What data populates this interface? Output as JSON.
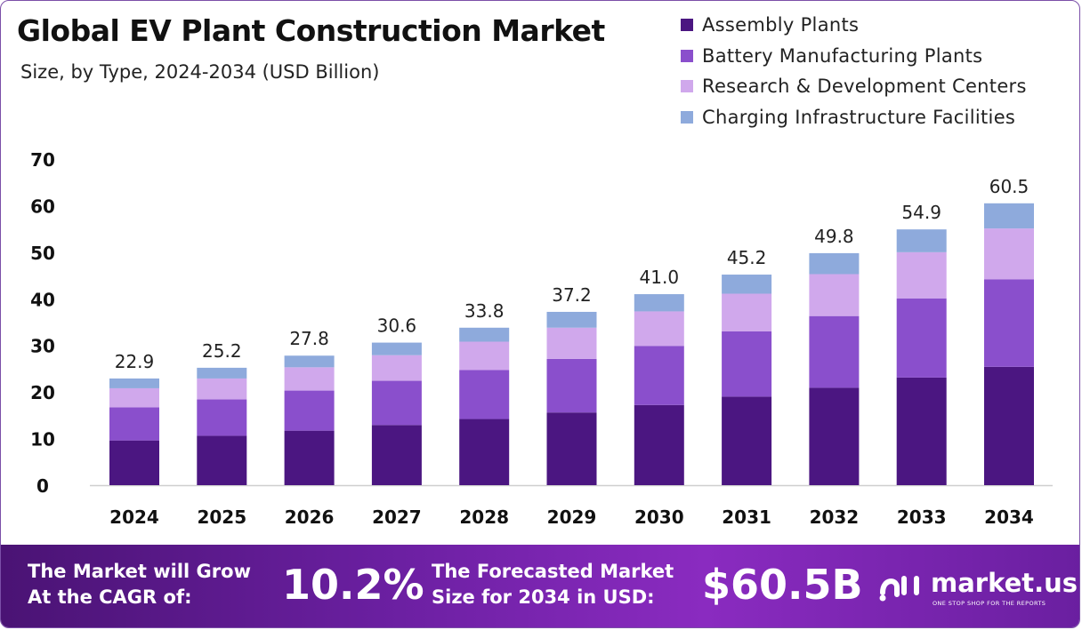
{
  "header": {
    "title": "Global EV Plant Construction Market",
    "subtitle": "Size, by Type, 2024-2034 (USD Billion)"
  },
  "legend": {
    "position": "top-right",
    "items": [
      {
        "label": "Assembly Plants",
        "color": "#4b1681"
      },
      {
        "label": "Battery Manufacturing Plants",
        "color": "#8a4fcc"
      },
      {
        "label": "Research & Development Centers",
        "color": "#d0a8ec"
      },
      {
        "label": "Charging Infrastructure Facilities",
        "color": "#8eaadc"
      }
    ]
  },
  "chart_data": {
    "type": "bar",
    "stacked": true,
    "categories": [
      "2024",
      "2025",
      "2026",
      "2027",
      "2028",
      "2029",
      "2030",
      "2031",
      "2032",
      "2033",
      "2034"
    ],
    "series": [
      {
        "name": "Assembly Plants",
        "color": "#4b1681",
        "values": [
          9.6,
          10.6,
          11.7,
          12.9,
          14.2,
          15.6,
          17.2,
          19.0,
          20.9,
          23.1,
          25.4
        ]
      },
      {
        "name": "Battery Manufacturing Plants",
        "color": "#8a4fcc",
        "values": [
          7.1,
          7.8,
          8.6,
          9.5,
          10.5,
          11.5,
          12.7,
          14.0,
          15.4,
          17.0,
          18.8
        ]
      },
      {
        "name": "Research & Development Centers",
        "color": "#d0a8ec",
        "values": [
          4.1,
          4.5,
          5.0,
          5.5,
          6.1,
          6.7,
          7.4,
          8.1,
          9.0,
          9.9,
          10.9
        ]
      },
      {
        "name": "Charging Infrastructure Facilities",
        "color": "#8eaadc",
        "values": [
          2.1,
          2.3,
          2.5,
          2.7,
          3.0,
          3.4,
          3.7,
          4.1,
          4.5,
          4.9,
          5.4
        ]
      }
    ],
    "totals": [
      "22.9",
      "25.2",
      "27.8",
      "30.6",
      "33.8",
      "37.2",
      "41.0",
      "45.2",
      "49.8",
      "54.9",
      "60.5"
    ],
    "ylim": [
      0,
      70
    ],
    "yticks": [
      "0",
      "10",
      "20",
      "30",
      "40",
      "50",
      "60",
      "70"
    ],
    "grid": false
  },
  "banner": {
    "cagr_label_line1": "The Market will Grow",
    "cagr_label_line2": "At the CAGR of:",
    "cagr_value": "10.2%",
    "forecast_label_line1": "The Forecasted Market",
    "forecast_label_line2": "Size for 2034 in USD:",
    "forecast_value": "$60.5B",
    "brand_name": "market.us",
    "brand_tagline": "ONE STOP SHOP FOR THE REPORTS",
    "brand_icon": "market-us-logo-icon"
  }
}
